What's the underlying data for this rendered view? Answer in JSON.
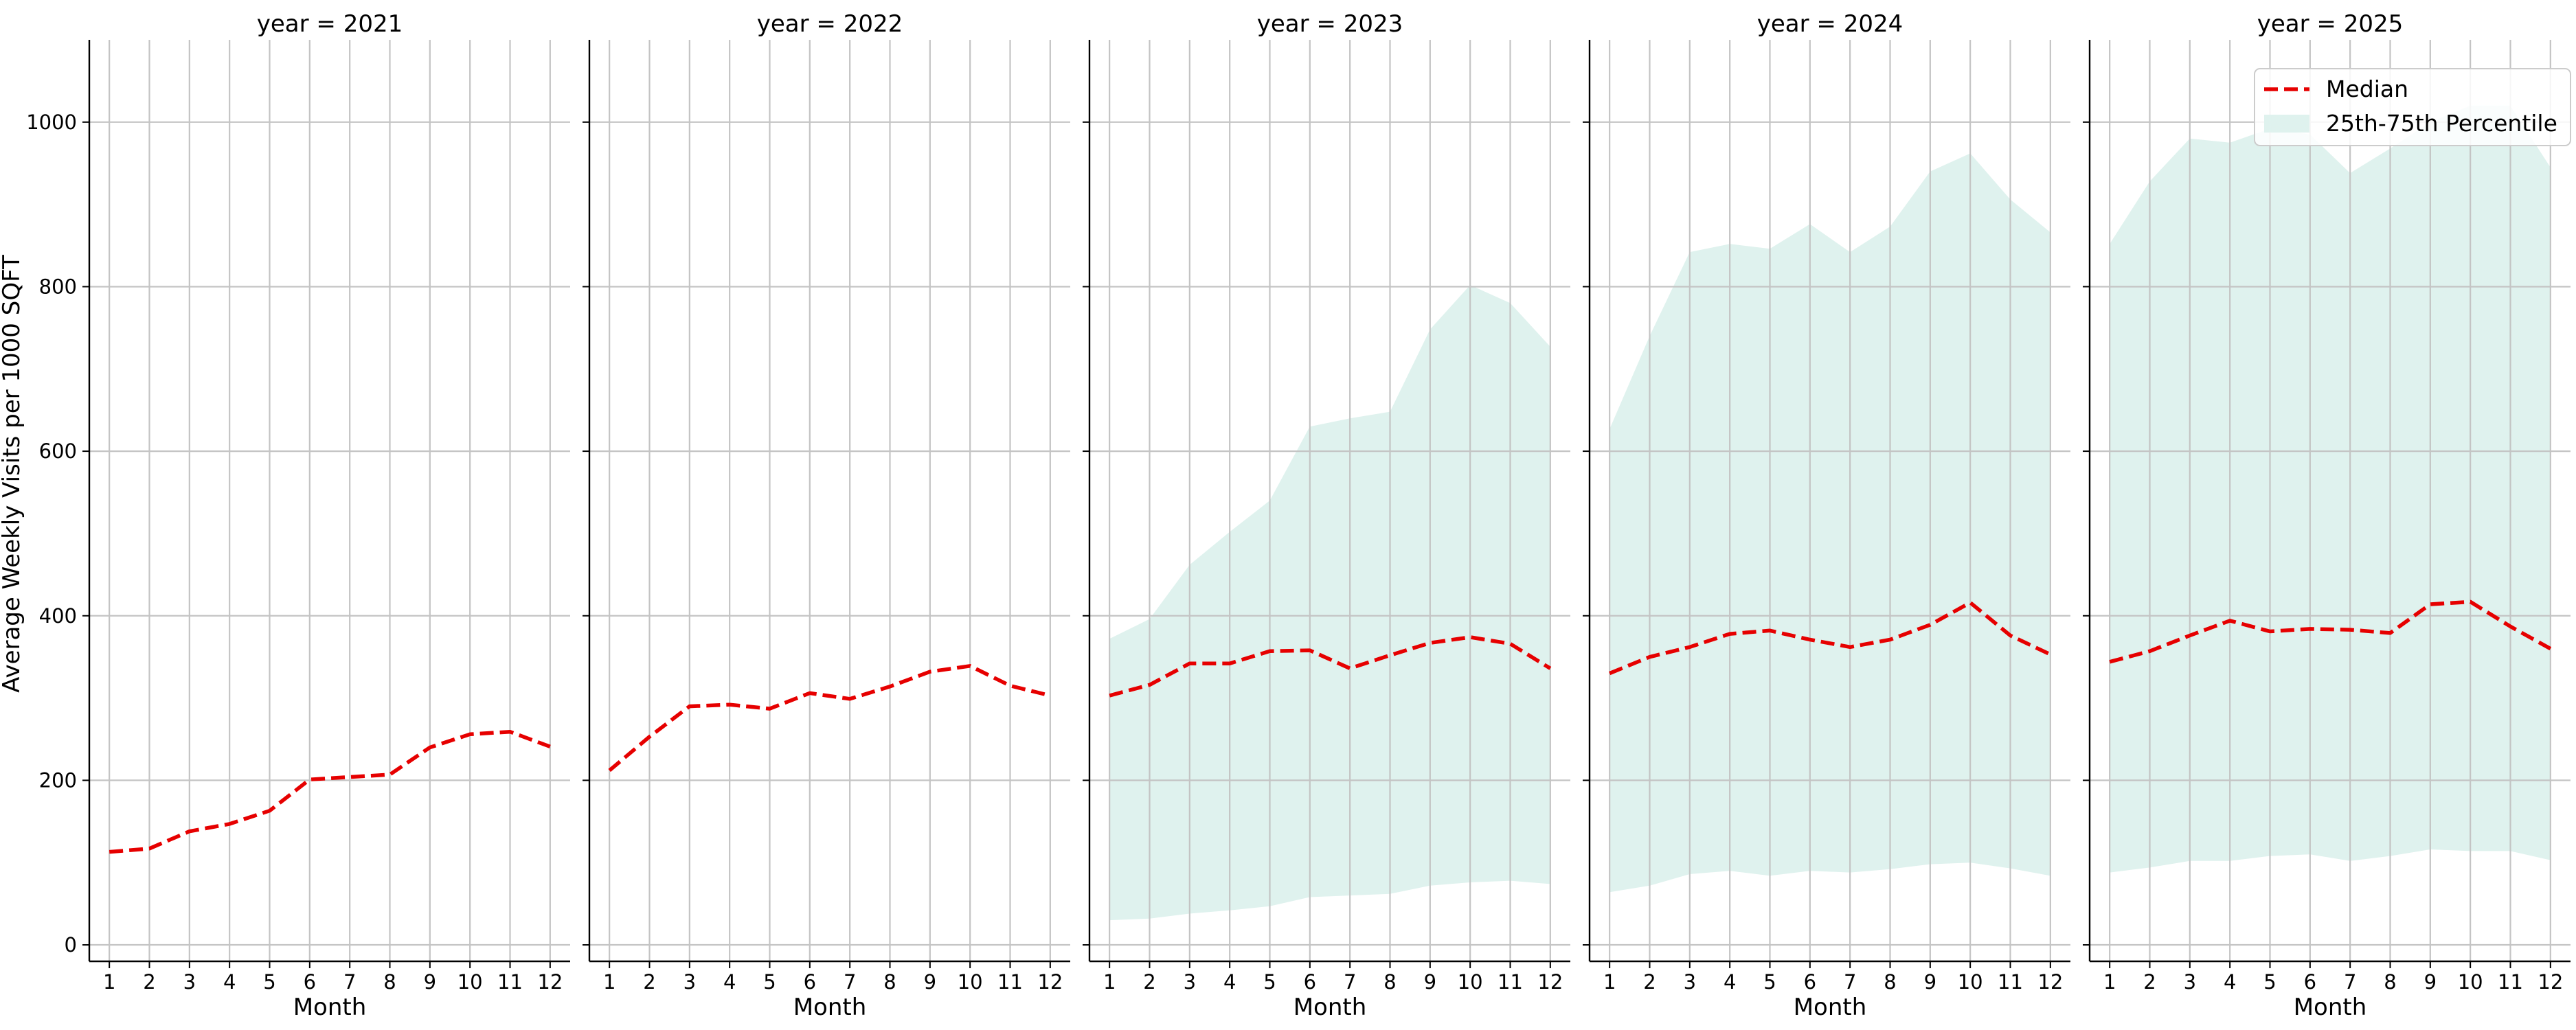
{
  "chart_data": {
    "type": "line",
    "ylabel": "Average Weekly Visits per 1000 SQFT",
    "xlabel": "Month",
    "x": [
      1,
      2,
      3,
      4,
      5,
      6,
      7,
      8,
      9,
      10,
      11,
      12
    ],
    "xticks": [
      "1",
      "2",
      "3",
      "4",
      "5",
      "6",
      "7",
      "8",
      "9",
      "10",
      "11",
      "12"
    ],
    "ylim": [
      -20,
      1100
    ],
    "yticks": [
      0,
      200,
      400,
      600,
      800,
      1000
    ],
    "grid": true,
    "legend": {
      "placement": "top-right",
      "entries": [
        {
          "label": "Median",
          "kind": "dashed-line",
          "color": "#e60000"
        },
        {
          "label": "25th-75th Percentile",
          "kind": "band",
          "color": "#dff2ee"
        }
      ]
    },
    "panels": [
      {
        "title": "year = 2021",
        "median": [
          113,
          117,
          138,
          147,
          163,
          201,
          204,
          207,
          240,
          256,
          259,
          241
        ],
        "p25": null,
        "p75": null
      },
      {
        "title": "year = 2022",
        "median": [
          212,
          253,
          290,
          292,
          287,
          306,
          299,
          314,
          332,
          339,
          315,
          303
        ],
        "p25": null,
        "p75": null
      },
      {
        "title": "year = 2023",
        "median": [
          303,
          316,
          342,
          342,
          357,
          358,
          336,
          352,
          367,
          374,
          366,
          336
        ],
        "p25": [
          30,
          32,
          38,
          42,
          47,
          58,
          60,
          62,
          72,
          76,
          78,
          74
        ],
        "p75": [
          372,
          396,
          462,
          502,
          540,
          630,
          640,
          648,
          748,
          802,
          780,
          727
        ]
      },
      {
        "title": "year = 2024",
        "median": [
          330,
          350,
          362,
          378,
          382,
          371,
          362,
          371,
          389,
          416,
          376,
          353
        ],
        "p25": [
          64,
          72,
          86,
          90,
          84,
          90,
          88,
          92,
          98,
          100,
          93,
          84
        ],
        "p75": [
          627,
          740,
          842,
          852,
          846,
          876,
          842,
          873,
          940,
          962,
          906,
          866
        ]
      },
      {
        "title": "year = 2025",
        "median": [
          344,
          357,
          376,
          394,
          381,
          384,
          383,
          379,
          414,
          417,
          387,
          360
        ],
        "p25": [
          88,
          94,
          102,
          102,
          108,
          110,
          102,
          108,
          116,
          114,
          114,
          103
        ],
        "p75": [
          852,
          928,
          980,
          975,
          992,
          985,
          938,
          968,
          1000,
          1020,
          1020,
          945
        ]
      }
    ],
    "colors": {
      "median": "#e60000",
      "band": "#dff2ee",
      "grid": "#c4c4c4",
      "axis": "#000000"
    }
  }
}
